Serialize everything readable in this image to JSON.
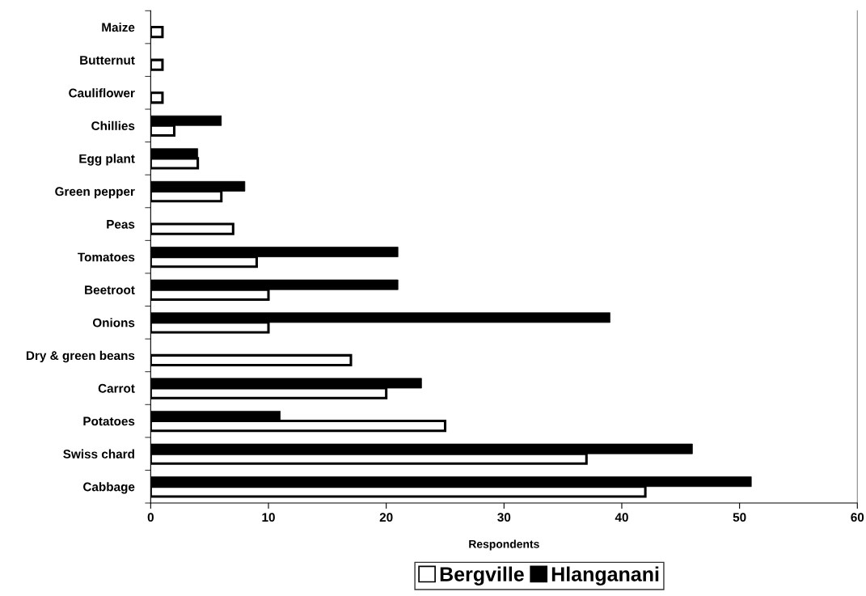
{
  "chart_data": {
    "type": "bar",
    "orientation": "horizontal",
    "xlabel": "Respondents",
    "categories": [
      "Maize",
      "Butternut",
      "Cauliflower",
      "Chillies",
      "Egg plant",
      "Green pepper",
      "Peas",
      "Tomatoes",
      "Beetroot",
      "Onions",
      "Dry & green beans",
      "Carrot",
      "Potatoes",
      "Swiss chard",
      "Cabbage"
    ],
    "series": [
      {
        "name": "Bergville",
        "color": "#ffffff",
        "values": [
          1,
          1,
          1,
          2,
          4,
          6,
          7,
          9,
          10,
          10,
          17,
          20,
          25,
          37,
          42
        ]
      },
      {
        "name": "Hlanganani",
        "color": "#000000",
        "values": [
          null,
          null,
          null,
          6,
          4,
          8,
          null,
          21,
          21,
          39,
          null,
          23,
          11,
          46,
          51
        ]
      }
    ],
    "xlim": [
      0,
      60
    ],
    "xticks": [
      0,
      10,
      20,
      30,
      40,
      50,
      60
    ],
    "grid": false,
    "legend": "bottom"
  }
}
